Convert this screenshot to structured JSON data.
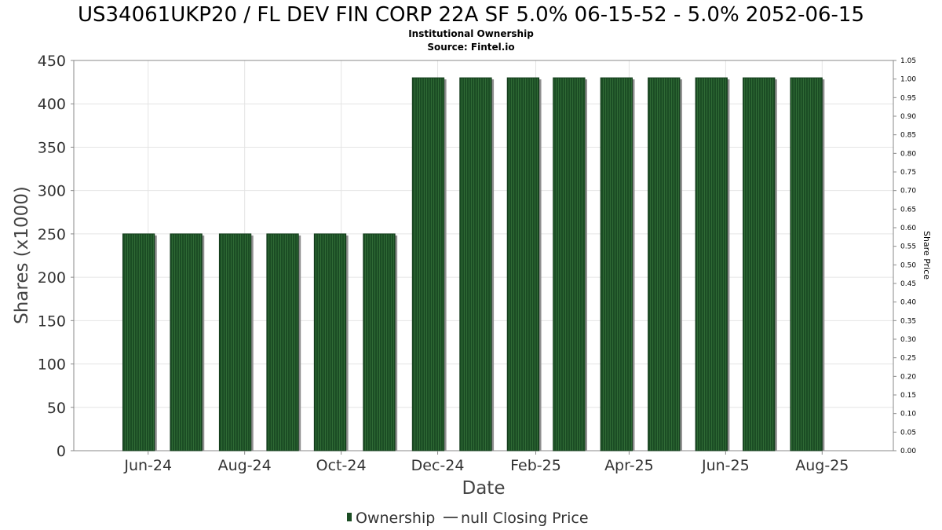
{
  "chart_data": {
    "type": "bar",
    "title": "US34061UKP20 / FL DEV FIN CORP 22A SF 5.0% 06-15-52 - 5.0% 2052-06-15",
    "subtitle": "Institutional Ownership",
    "source": "Source: Fintel.io",
    "xlabel": "Date",
    "ylabel": "Shares (x1000)",
    "y2label": "Share Price",
    "ylim": [
      0,
      450
    ],
    "y2lim": [
      0,
      1.05
    ],
    "yticks": [
      0,
      50,
      100,
      150,
      200,
      250,
      300,
      350,
      400,
      450
    ],
    "y2ticks": [
      "0.00",
      "0.05",
      "0.10",
      "0.15",
      "0.20",
      "0.25",
      "0.30",
      "0.35",
      "0.40",
      "0.45",
      "0.50",
      "0.55",
      "0.60",
      "0.65",
      "0.70",
      "0.75",
      "0.80",
      "0.85",
      "0.90",
      "0.95",
      "1.00",
      "1.05"
    ],
    "xticks": [
      "Jun-24",
      "Aug-24",
      "Oct-24",
      "Dec-24",
      "Feb-25",
      "Apr-25",
      "Jun-25",
      "Aug-25"
    ],
    "x_start": "2024-04-15",
    "x_end": "2025-09-15",
    "xtick_dates": [
      "2024-06-01",
      "2024-08-01",
      "2024-10-01",
      "2024-12-01",
      "2025-02-01",
      "2025-04-01",
      "2025-06-01",
      "2025-08-01"
    ],
    "bar_width_days": 20,
    "series": [
      {
        "name": "Ownership",
        "color": "#1b4d24",
        "x": [
          "2024-05-26",
          "2024-06-25",
          "2024-07-26",
          "2024-08-25",
          "2024-09-24",
          "2024-10-25",
          "2024-11-25",
          "2024-12-25",
          "2025-01-24",
          "2025-02-22",
          "2025-03-24",
          "2025-04-23",
          "2025-05-23",
          "2025-06-22",
          "2025-07-22"
        ],
        "values": [
          250,
          250,
          250,
          250,
          250,
          250,
          430,
          430,
          430,
          430,
          430,
          430,
          430,
          430,
          430
        ]
      },
      {
        "name": "null Closing Price",
        "color": "#555555",
        "x": [],
        "values": []
      }
    ],
    "grid": true,
    "legend_position": "bottom-center"
  }
}
